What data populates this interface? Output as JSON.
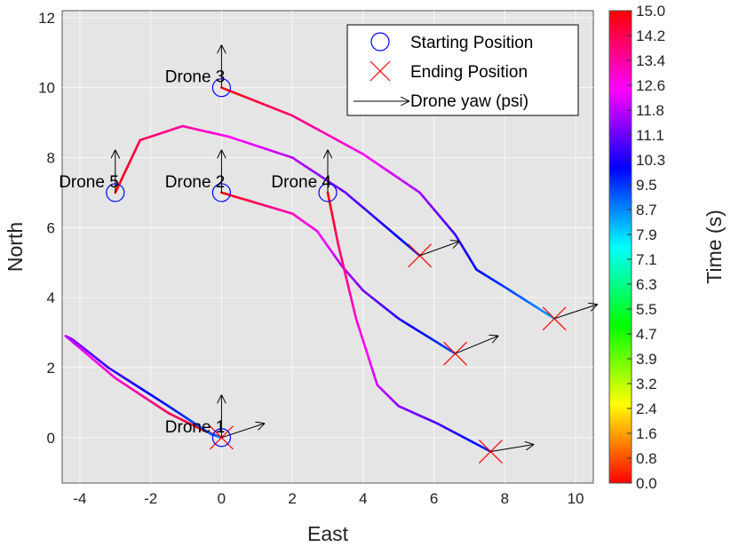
{
  "chart_data": {
    "type": "line",
    "xlabel": "East",
    "ylabel": "North",
    "xlim": [
      -4.5,
      10.5
    ],
    "ylim": [
      -1.3,
      12.2
    ],
    "x_ticks": [
      -4,
      -2,
      0,
      2,
      4,
      6,
      8,
      10
    ],
    "y_ticks": [
      0,
      2,
      4,
      6,
      8,
      10,
      12
    ],
    "grid": true,
    "background": "#e5e5e5",
    "legend": {
      "location": "top-right",
      "entries": [
        {
          "label": "Starting Position",
          "marker": "circle",
          "color": "#0000ff"
        },
        {
          "label": "Ending Position",
          "marker": "x",
          "color": "#ff0000"
        },
        {
          "label": "Drone yaw (psi)",
          "marker": "arrow",
          "color": "#000000"
        }
      ]
    },
    "colorbar": {
      "label": "Time (s)",
      "ticks": [
        "15.0",
        "14.2",
        "13.4",
        "12.6",
        "11.8",
        "11.1",
        "10.3",
        "9.5",
        "8.7",
        "7.9",
        "7.1",
        "6.3",
        "5.5",
        "4.7",
        "3.9",
        "3.2",
        "2.4",
        "1.6",
        "0.8",
        "0.0"
      ],
      "range": [
        0,
        15
      ]
    },
    "series": [
      {
        "name": "Drone 1",
        "start": [
          0,
          0
        ],
        "end": [
          0,
          0
        ],
        "end_yaw_arrow": [
          1.2,
          0.4
        ],
        "points": [
          [
            0,
            0,
            0
          ],
          [
            -0.5,
            0.2,
            0.3
          ],
          [
            -1.5,
            0.7,
            1
          ],
          [
            -3,
            1.7,
            2
          ],
          [
            -4.4,
            2.9,
            3
          ],
          [
            -4.2,
            2.8,
            3.6
          ],
          [
            -3.2,
            2.0,
            4.4
          ],
          [
            -1.5,
            0.9,
            5.2
          ],
          [
            -0.3,
            0.1,
            5.9
          ],
          [
            0,
            0,
            6.2
          ]
        ]
      },
      {
        "name": "Drone 2",
        "start": [
          0,
          7
        ],
        "end": [
          6.6,
          2.4
        ],
        "end_yaw_arrow": [
          1.2,
          0.5
        ],
        "points": [
          [
            0,
            7,
            0
          ],
          [
            1,
            6.7,
            0.9
          ],
          [
            2,
            6.4,
            1.8
          ],
          [
            2.7,
            5.9,
            2.4
          ],
          [
            3.4,
            4.9,
            3.2
          ],
          [
            4,
            4.2,
            3.8
          ],
          [
            5,
            3.4,
            4.6
          ],
          [
            6.6,
            2.4,
            5.8
          ]
        ]
      },
      {
        "name": "Drone 3",
        "start": [
          0,
          10
        ],
        "end": [
          9.4,
          3.4
        ],
        "end_yaw_arrow": [
          1.2,
          0.4
        ],
        "points": [
          [
            0,
            10,
            0
          ],
          [
            2,
            9.2,
            1.2
          ],
          [
            4,
            8.1,
            2.4
          ],
          [
            5.6,
            7,
            3.4
          ],
          [
            6.6,
            5.8,
            4.4
          ],
          [
            7.2,
            4.8,
            5
          ],
          [
            8,
            4.3,
            5.6
          ],
          [
            9.4,
            3.4,
            6.6
          ]
        ]
      },
      {
        "name": "Drone 4",
        "start": [
          3,
          7
        ],
        "end": [
          7.6,
          -0.4
        ],
        "end_yaw_arrow": [
          1.2,
          0.2
        ],
        "points": [
          [
            3,
            7,
            0
          ],
          [
            3.3,
            5.5,
            1
          ],
          [
            3.8,
            3.4,
            2
          ],
          [
            4.4,
            1.5,
            3
          ],
          [
            5,
            0.9,
            3.6
          ],
          [
            6.1,
            0.4,
            4.3
          ],
          [
            7.6,
            -0.4,
            5.4
          ]
        ]
      },
      {
        "name": "Drone 5",
        "start": [
          -3,
          7
        ],
        "end": [
          5.6,
          5.2
        ],
        "end_yaw_arrow": [
          1.1,
          0.4
        ],
        "points": [
          [
            -3,
            7,
            0
          ],
          [
            -2.3,
            8.5,
            0.8
          ],
          [
            -1.1,
            8.9,
            1.6
          ],
          [
            0.2,
            8.6,
            2.4
          ],
          [
            2,
            8,
            3.2
          ],
          [
            3.5,
            7,
            4
          ],
          [
            5.6,
            5.2,
            5.4
          ]
        ]
      }
    ],
    "start_yaw_arrows": [
      [
        0,
        0,
        0,
        1.2
      ],
      [
        0,
        7,
        0,
        1.2
      ],
      [
        0,
        10,
        0,
        1.2
      ],
      [
        3,
        7,
        0,
        1.2
      ],
      [
        -3,
        7,
        0,
        1.2
      ]
    ]
  }
}
